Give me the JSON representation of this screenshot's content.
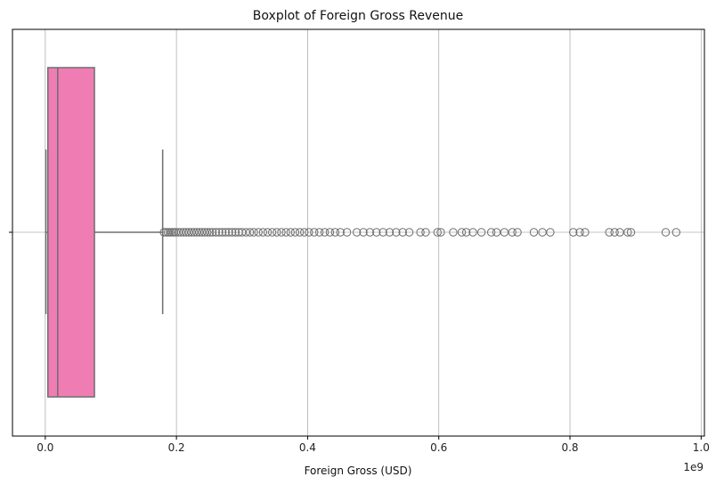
{
  "chart_data": {
    "type": "box",
    "title": "Boxplot of Foreign Gross Revenue",
    "xlabel": "Foreign Gross (USD)",
    "ylabel": "",
    "offset_label": "1e9",
    "xlim": [
      -0.05,
      1.005
    ],
    "x_ticks": [
      0.0,
      0.2,
      0.4,
      0.6,
      0.8,
      1.0
    ],
    "x_tick_labels": [
      "0.0",
      "0.2",
      "0.4",
      "0.6",
      "0.8",
      "1.0"
    ],
    "grid": true,
    "box_color": "#ef7db4",
    "line_color": "#6e6e6e",
    "box": {
      "whisker_low": 0.001,
      "q1": 0.004,
      "median": 0.019,
      "q3": 0.075,
      "whisker_high": 0.179
    },
    "outliers": [
      0.181,
      0.184,
      0.187,
      0.19,
      0.193,
      0.196,
      0.199,
      0.203,
      0.207,
      0.211,
      0.215,
      0.219,
      0.223,
      0.227,
      0.231,
      0.235,
      0.239,
      0.243,
      0.247,
      0.251,
      0.255,
      0.26,
      0.265,
      0.27,
      0.275,
      0.28,
      0.285,
      0.29,
      0.295,
      0.3,
      0.306,
      0.312,
      0.318,
      0.325,
      0.332,
      0.339,
      0.346,
      0.353,
      0.36,
      0.367,
      0.374,
      0.381,
      0.388,
      0.395,
      0.402,
      0.41,
      0.418,
      0.426,
      0.434,
      0.442,
      0.45,
      0.46,
      0.475,
      0.485,
      0.495,
      0.505,
      0.515,
      0.525,
      0.535,
      0.545,
      0.555,
      0.572,
      0.58,
      0.598,
      0.603,
      0.622,
      0.635,
      0.642,
      0.652,
      0.665,
      0.68,
      0.688,
      0.7,
      0.712,
      0.72,
      0.745,
      0.758,
      0.77,
      0.805,
      0.815,
      0.823,
      0.86,
      0.868,
      0.876,
      0.888,
      0.893,
      0.946,
      0.962
    ]
  }
}
